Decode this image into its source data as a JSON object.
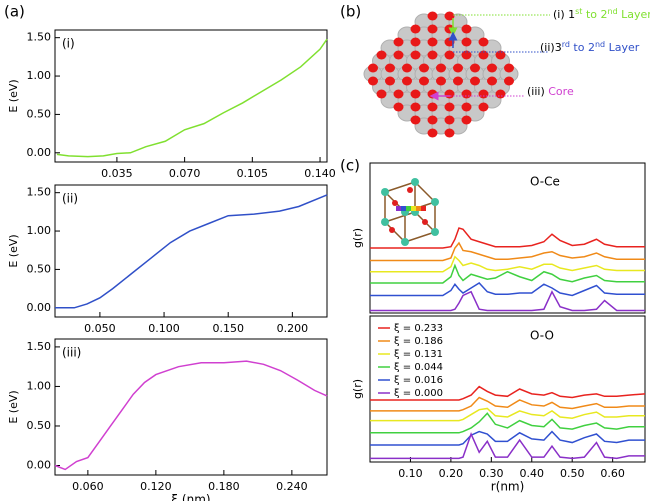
{
  "panel_labels": [
    "(a)",
    "(b)",
    "(c)"
  ],
  "diagram": {
    "labels": [
      {
        "parts": [
          "(i) 1",
          "st",
          " to 2",
          "nd",
          " Layer"
        ]
      },
      {
        "parts": [
          "(ii)3",
          "rd",
          " to 2",
          "nd",
          " Layer"
        ]
      },
      {
        "parts": [
          "(iii) ",
          "Core"
        ]
      }
    ]
  },
  "chart_data": [
    {
      "type": "line",
      "annotation": "(i)",
      "y_label": "E (eV)",
      "x": [
        0.004,
        0.01,
        0.02,
        0.028,
        0.035,
        0.042,
        0.05,
        0.06,
        0.07,
        0.08,
        0.09,
        0.1,
        0.11,
        0.12,
        0.13,
        0.14,
        0.1436
      ],
      "series": [
        {
          "color": "#80e030",
          "values": [
            -0.02,
            -0.04,
            -0.05,
            -0.04,
            -0.01,
            0.0,
            0.08,
            0.15,
            0.3,
            0.38,
            0.52,
            0.65,
            0.8,
            0.95,
            1.12,
            1.35,
            1.48
          ]
        }
      ],
      "xlim": [
        0.003,
        0.1436
      ],
      "ylim": [
        -0.12,
        1.6
      ],
      "xticks": [
        0.035,
        {
          "value": 0.07,
          "label": "0.070"
        },
        0.105,
        {
          "value": 0.14,
          "label": "0.140"
        }
      ],
      "yticks": [
        {
          "value": 0,
          "label": "0.00"
        },
        {
          "value": 0.5,
          "label": "0.50"
        },
        {
          "value": 1,
          "label": "1.00"
        },
        {
          "value": 1.5,
          "label": "1.50"
        }
      ]
    },
    {
      "type": "line",
      "annotation": "(ii)",
      "y_label": "E (eV)",
      "x": [
        0.015,
        0.03,
        0.04,
        0.05,
        0.06,
        0.075,
        0.09,
        0.105,
        0.12,
        0.135,
        0.15,
        0.17,
        0.19,
        0.205,
        0.227
      ],
      "series": [
        {
          "color": "#3050c8",
          "values": [
            0,
            0,
            0.05,
            0.13,
            0.25,
            0.45,
            0.65,
            0.85,
            1.0,
            1.1,
            1.2,
            1.22,
            1.26,
            1.32,
            1.47
          ]
        }
      ],
      "xlim": [
        0.015,
        0.227
      ],
      "ylim": [
        -0.12,
        1.6
      ],
      "xticks": [
        {
          "value": 0.05,
          "label": "0.050"
        },
        {
          "value": 0.1,
          "label": "0.100"
        },
        {
          "value": 0.15,
          "label": "0.150"
        },
        {
          "value": 0.2,
          "label": "0.200"
        }
      ],
      "yticks": [
        {
          "value": 0,
          "label": "0.00"
        },
        {
          "value": 0.5,
          "label": "0.50"
        },
        {
          "value": 1,
          "label": "1.00"
        },
        {
          "value": 1.5,
          "label": "1.50"
        }
      ]
    },
    {
      "type": "line",
      "annotation": "(iii)",
      "y_label": "E (eV)",
      "x_label": "ξ (nm)",
      "x": [
        0.031,
        0.04,
        0.05,
        0.06,
        0.07,
        0.08,
        0.09,
        0.1,
        0.11,
        0.12,
        0.14,
        0.16,
        0.18,
        0.2,
        0.215,
        0.23,
        0.245,
        0.26,
        0.271
      ],
      "series": [
        {
          "color": "#d040d0",
          "values": [
            0.0,
            -0.05,
            0.05,
            0.1,
            0.3,
            0.5,
            0.7,
            0.9,
            1.05,
            1.15,
            1.25,
            1.3,
            1.3,
            1.32,
            1.28,
            1.2,
            1.08,
            0.95,
            0.88
          ]
        }
      ],
      "xlim": [
        0.031,
        0.271
      ],
      "ylim": [
        -0.12,
        1.6
      ],
      "xticks": [
        {
          "value": 0.06,
          "label": "0.060"
        },
        {
          "value": 0.12,
          "label": "0.120"
        },
        {
          "value": 0.18,
          "label": "0.180"
        },
        {
          "value": 0.24,
          "label": "0.240"
        }
      ],
      "yticks": [
        {
          "value": 0,
          "label": "0.00"
        },
        {
          "value": 0.5,
          "label": "0.50"
        },
        {
          "value": 1,
          "label": "1.00"
        },
        {
          "value": 1.5,
          "label": "1.50"
        }
      ]
    },
    {
      "type": "line",
      "annotation": "O-Ce",
      "y_label": "g(r)",
      "x": [
        0.0,
        0.18,
        0.2,
        0.21,
        0.22,
        0.23,
        0.25,
        0.27,
        0.29,
        0.31,
        0.34,
        0.37,
        0.4,
        0.43,
        0.45,
        0.47,
        0.5,
        0.53,
        0.56,
        0.58,
        0.61,
        0.64,
        0.68
      ],
      "series": [
        {
          "color": "#e8231f",
          "values": [
            5.2,
            5.2,
            5.3,
            5.9,
            6.8,
            6.7,
            5.9,
            5.7,
            5.5,
            5.3,
            5.3,
            5.3,
            5.4,
            5.7,
            6.3,
            5.8,
            5.4,
            5.5,
            5.9,
            5.5,
            5.3,
            5.3,
            5.3
          ]
        },
        {
          "color": "#f08a18",
          "values": [
            4.2,
            4.2,
            4.4,
            5.2,
            5.6,
            5.0,
            4.9,
            4.7,
            4.5,
            4.3,
            4.3,
            4.4,
            4.5,
            4.8,
            4.9,
            4.6,
            4.4,
            4.5,
            4.8,
            4.5,
            4.3,
            4.3,
            4.3
          ]
        },
        {
          "color": "#e8e820",
          "values": [
            3.3,
            3.3,
            3.7,
            4.5,
            4.2,
            3.8,
            4.0,
            3.8,
            3.5,
            3.4,
            3.5,
            3.7,
            3.5,
            3.9,
            3.9,
            3.6,
            3.4,
            3.6,
            3.8,
            3.5,
            3.4,
            3.4,
            3.4
          ]
        },
        {
          "color": "#40d040",
          "values": [
            2.4,
            2.4,
            2.9,
            3.8,
            3.0,
            2.6,
            3.1,
            2.9,
            2.7,
            2.8,
            3.3,
            2.9,
            2.6,
            3.3,
            3.1,
            2.7,
            2.5,
            2.8,
            3.0,
            2.6,
            2.5,
            2.5,
            2.5
          ]
        },
        {
          "color": "#3050d0",
          "values": [
            1.4,
            1.4,
            1.8,
            2.3,
            1.9,
            1.6,
            2.0,
            2.4,
            1.7,
            1.5,
            1.5,
            1.6,
            1.6,
            2.3,
            2.0,
            1.6,
            1.4,
            1.8,
            2.2,
            1.6,
            1.5,
            1.5,
            1.5
          ]
        },
        {
          "color": "#8a30c8",
          "values": [
            0.2,
            0.2,
            0.2,
            0.3,
            0.8,
            1.4,
            1.7,
            0.3,
            0.2,
            0.2,
            0.2,
            0.2,
            0.2,
            0.3,
            1.7,
            0.5,
            0.2,
            0.2,
            0.3,
            1.0,
            0.2,
            0.2,
            0.2
          ]
        }
      ],
      "xlim": [
        0,
        0.68
      ],
      "ylim": [
        0,
        12
      ]
    },
    {
      "type": "line",
      "annotation": "O-O",
      "y_label": "g(r)",
      "x_label": "r(nm)",
      "legend": "upper left",
      "x": [
        0.0,
        0.18,
        0.2,
        0.21,
        0.22,
        0.23,
        0.25,
        0.27,
        0.29,
        0.31,
        0.34,
        0.37,
        0.4,
        0.43,
        0.45,
        0.47,
        0.5,
        0.53,
        0.56,
        0.58,
        0.61,
        0.64,
        0.68
      ],
      "series": [
        {
          "name": "ξ = 0.233",
          "color": "#e8231f",
          "values": [
            5.1,
            5.1,
            5.1,
            5.1,
            5.1,
            5.2,
            5.5,
            6.2,
            5.8,
            5.5,
            5.4,
            6.0,
            5.6,
            5.5,
            5.7,
            5.4,
            5.3,
            5.5,
            5.6,
            5.4,
            5.4,
            5.5,
            5.6
          ]
        },
        {
          "name": "ξ = 0.186",
          "color": "#f08a18",
          "values": [
            4.2,
            4.2,
            4.2,
            4.2,
            4.2,
            4.3,
            4.6,
            5.3,
            5.0,
            4.6,
            4.5,
            5.1,
            4.7,
            4.6,
            4.9,
            4.5,
            4.4,
            4.6,
            4.8,
            4.5,
            4.5,
            4.6,
            4.6
          ]
        },
        {
          "name": "ξ = 0.131",
          "color": "#e8e820",
          "values": [
            3.4,
            3.4,
            3.4,
            3.4,
            3.4,
            3.5,
            3.9,
            4.3,
            4.4,
            3.8,
            3.7,
            4.2,
            3.9,
            3.8,
            4.2,
            3.7,
            3.6,
            3.9,
            4.1,
            3.7,
            3.7,
            3.8,
            3.8
          ]
        },
        {
          "name": "ξ = 0.044",
          "color": "#40d040",
          "values": [
            2.4,
            2.4,
            2.4,
            2.4,
            2.4,
            2.5,
            2.8,
            3.3,
            4.0,
            3.1,
            2.8,
            3.4,
            3.0,
            2.9,
            3.5,
            2.8,
            2.7,
            3.0,
            3.2,
            2.8,
            2.7,
            2.9,
            2.9
          ]
        },
        {
          "name": "ξ = 0.016",
          "color": "#3050d0",
          "values": [
            1.4,
            1.4,
            1.4,
            1.4,
            1.4,
            1.5,
            2.2,
            2.5,
            2.3,
            1.7,
            1.7,
            2.4,
            1.9,
            1.8,
            2.5,
            1.8,
            1.6,
            2.0,
            2.3,
            1.7,
            1.6,
            1.8,
            1.8
          ]
        },
        {
          "name": "ξ = 0.000",
          "color": "#8a30c8",
          "values": [
            0.3,
            0.3,
            0.3,
            0.3,
            0.3,
            0.4,
            2.3,
            0.8,
            1.7,
            0.4,
            0.4,
            1.8,
            0.4,
            0.4,
            1.3,
            0.4,
            0.3,
            0.4,
            1.6,
            0.4,
            0.3,
            0.5,
            0.5
          ]
        }
      ],
      "xlim": [
        0,
        0.68
      ],
      "ylim": [
        0,
        12
      ],
      "xticks": [
        {
          "value": 0.1,
          "label": "0.10"
        },
        {
          "value": 0.2,
          "label": "0.20"
        },
        {
          "value": 0.3,
          "label": "0.30"
        },
        {
          "value": 0.4,
          "label": "0.40"
        },
        {
          "value": 0.5,
          "label": "0.50"
        },
        {
          "value": 0.6,
          "label": "0.60"
        }
      ]
    }
  ]
}
